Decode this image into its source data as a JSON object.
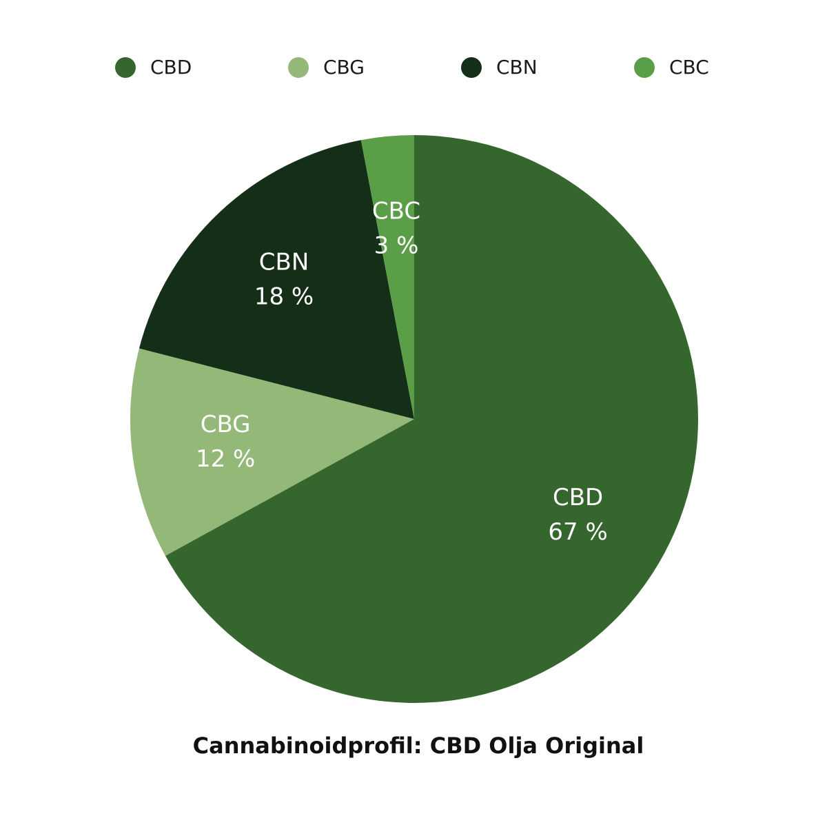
{
  "chart_data": {
    "type": "pie",
    "title": "Cannabinoidprofil: CBD Olja Original",
    "categories": [
      "CBD",
      "CBG",
      "CBN",
      "CBC"
    ],
    "values": [
      67,
      12,
      18,
      3
    ],
    "value_labels": [
      "67 %",
      "12 %",
      "18 %",
      "3 %"
    ],
    "colors": [
      "#35662d",
      "#93b878",
      "#142e17",
      "#5a9e48"
    ],
    "legend": "top"
  }
}
